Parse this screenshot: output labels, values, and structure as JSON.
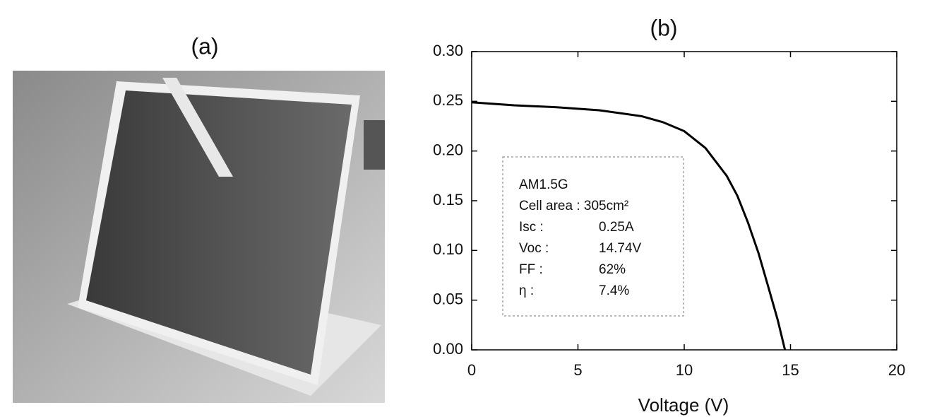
{
  "panel_a": {
    "label": "(a)"
  },
  "chart_data": {
    "type": "line",
    "title": "(b)",
    "xlabel": "Voltage (V)",
    "x": [
      0,
      2,
      4,
      6,
      8,
      9,
      10,
      11,
      12,
      12.5,
      13,
      13.5,
      14,
      14.4,
      14.74
    ],
    "values": [
      0.249,
      0.246,
      0.244,
      0.241,
      0.235,
      0.229,
      0.22,
      0.203,
      0.175,
      0.155,
      0.128,
      0.097,
      0.06,
      0.03,
      0
    ],
    "color": "#000000",
    "xlim": [
      0,
      20
    ],
    "xticks": [
      0,
      5,
      10,
      15,
      20
    ],
    "ylim": [
      0,
      0.3
    ],
    "yticks": [
      {
        "value": 0,
        "label": "0.00"
      },
      0.05,
      {
        "value": 0.1,
        "label": "0.10"
      },
      0.15,
      {
        "value": 0.2,
        "label": "0.20"
      },
      0.25,
      {
        "value": 0.3,
        "label": "0.30"
      }
    ],
    "annotation": {
      "heading": "AM1.5G",
      "area": "Cell area : 305cm²",
      "rows": [
        [
          "Isc :",
          "0.25A"
        ],
        [
          "Voc :",
          "14.74V"
        ],
        [
          "FF :",
          "62%"
        ],
        [
          "η :",
          "7.4%"
        ]
      ]
    }
  }
}
